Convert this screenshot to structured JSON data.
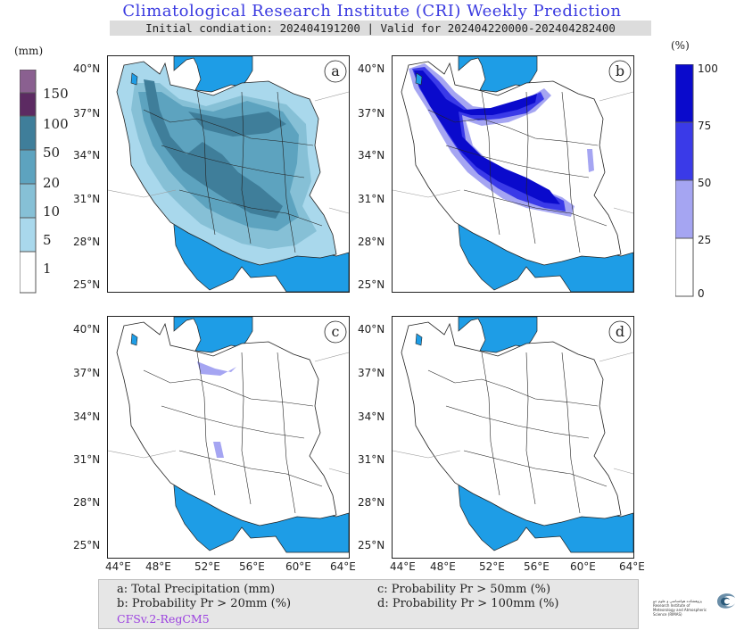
{
  "title": "Climatological Research Institute (CRI) Weekly Prediction",
  "subtitle": "Initial condiation: 202404191200 | Valid for 202404220000-202404282400",
  "precip_colorbar": {
    "unit": "(mm)",
    "labels": [
      "150",
      "100",
      "50",
      "20",
      "10",
      "5",
      "1"
    ],
    "colors": [
      "#8a6090",
      "#5c2a62",
      "#3f7e9a",
      "#5da3bf",
      "#86c0d6",
      "#a9d8ec",
      "#ffffff"
    ]
  },
  "prob_colorbar": {
    "unit": "(%)",
    "labels": [
      "100",
      "75",
      "50",
      "25",
      "0"
    ],
    "colors": [
      "#0a0acc",
      "#3a3ae8",
      "#a5a5f2",
      "#ffffff"
    ]
  },
  "panels": [
    {
      "id": "a",
      "label": "a"
    },
    {
      "id": "b",
      "label": "b"
    },
    {
      "id": "c",
      "label": "c"
    },
    {
      "id": "d",
      "label": "d"
    }
  ],
  "lat_labels": [
    "40°N",
    "37°N",
    "34°N",
    "31°N",
    "28°N",
    "25°N"
  ],
  "lon_labels": [
    "44°E",
    "48°E",
    "52°E",
    "56°E",
    "60°E",
    "64°E"
  ],
  "legend": {
    "a": "a: Total Precipitation (mm)",
    "b": "b: Probability Pr > 20mm (%)",
    "c": "c: Probability Pr > 50mm (%)",
    "d": "d: Probability Pr > 100mm (%)",
    "model": "CFSv.2-RegCM5"
  },
  "logo_text": "پژوهشکده هواشناسی و علوم جو Research Institute of Meteorology and Atmospheric Science (RIMAS)",
  "colors": {
    "sea": "#1e9de6",
    "title": "#3a3ae0",
    "model": "#9b3fe0"
  }
}
